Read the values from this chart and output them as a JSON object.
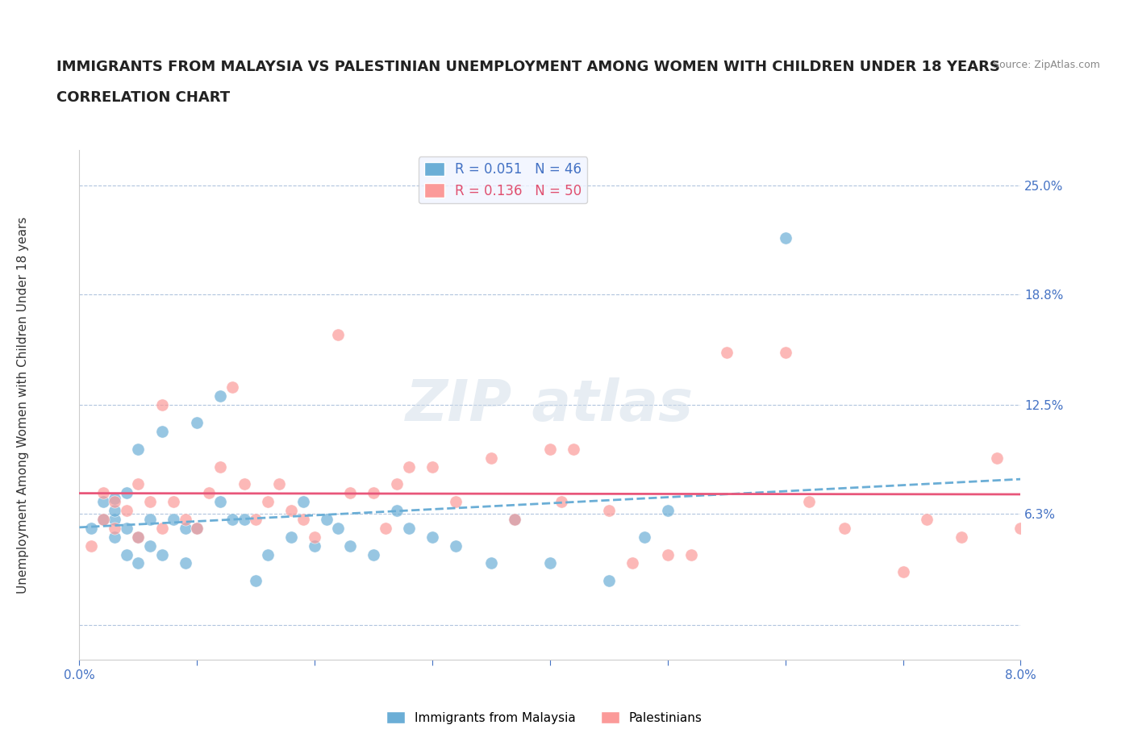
{
  "title_line1": "IMMIGRANTS FROM MALAYSIA VS PALESTINIAN UNEMPLOYMENT AMONG WOMEN WITH CHILDREN UNDER 18 YEARS",
  "title_line2": "CORRELATION CHART",
  "source_text": "Source: ZipAtlas.com",
  "xlabel": "",
  "ylabel": "Unemployment Among Women with Children Under 18 years",
  "x_min": 0.0,
  "x_max": 0.08,
  "y_min": -0.02,
  "y_max": 0.27,
  "y_ticks": [
    0.0,
    0.063,
    0.125,
    0.188,
    0.25
  ],
  "y_tick_labels": [
    "",
    "6.3%",
    "12.5%",
    "18.8%",
    "25.0%"
  ],
  "x_ticks": [
    0.0,
    0.01,
    0.02,
    0.03,
    0.04,
    0.05,
    0.06,
    0.07,
    0.08
  ],
  "x_tick_labels": [
    "0.0%",
    "",
    "",
    "",
    "",
    "",
    "",
    "",
    "8.0%"
  ],
  "R_blue": 0.051,
  "N_blue": 46,
  "R_pink": 0.136,
  "N_pink": 50,
  "blue_color": "#6baed6",
  "pink_color": "#fb9a99",
  "blue_line_color": "#6baed6",
  "pink_line_color": "#e8567a",
  "legend_box_color": "#f0f4ff",
  "watermark_text": "ZIPAtlas",
  "title_fontsize": 13,
  "subtitle_fontsize": 13,
  "axis_label_fontsize": 11,
  "tick_fontsize": 11,
  "legend_fontsize": 12,
  "blue_x": [
    0.001,
    0.002,
    0.002,
    0.003,
    0.003,
    0.003,
    0.003,
    0.004,
    0.004,
    0.004,
    0.005,
    0.005,
    0.005,
    0.006,
    0.006,
    0.007,
    0.007,
    0.008,
    0.009,
    0.009,
    0.01,
    0.01,
    0.012,
    0.012,
    0.013,
    0.014,
    0.015,
    0.016,
    0.018,
    0.019,
    0.02,
    0.021,
    0.022,
    0.023,
    0.025,
    0.027,
    0.028,
    0.03,
    0.032,
    0.035,
    0.037,
    0.04,
    0.045,
    0.048,
    0.05,
    0.06
  ],
  "blue_y": [
    0.055,
    0.06,
    0.07,
    0.05,
    0.06,
    0.065,
    0.072,
    0.04,
    0.055,
    0.075,
    0.035,
    0.05,
    0.1,
    0.045,
    0.06,
    0.04,
    0.11,
    0.06,
    0.035,
    0.055,
    0.055,
    0.115,
    0.07,
    0.13,
    0.06,
    0.06,
    0.025,
    0.04,
    0.05,
    0.07,
    0.045,
    0.06,
    0.055,
    0.045,
    0.04,
    0.065,
    0.055,
    0.05,
    0.045,
    0.035,
    0.06,
    0.035,
    0.025,
    0.05,
    0.065,
    0.22
  ],
  "pink_x": [
    0.001,
    0.002,
    0.002,
    0.003,
    0.003,
    0.004,
    0.005,
    0.005,
    0.006,
    0.007,
    0.007,
    0.008,
    0.009,
    0.01,
    0.011,
    0.012,
    0.013,
    0.014,
    0.015,
    0.016,
    0.017,
    0.018,
    0.019,
    0.02,
    0.022,
    0.023,
    0.025,
    0.026,
    0.027,
    0.028,
    0.03,
    0.032,
    0.035,
    0.037,
    0.04,
    0.041,
    0.042,
    0.045,
    0.047,
    0.05,
    0.052,
    0.055,
    0.06,
    0.062,
    0.065,
    0.07,
    0.072,
    0.075,
    0.078,
    0.08
  ],
  "pink_y": [
    0.045,
    0.06,
    0.075,
    0.055,
    0.07,
    0.065,
    0.05,
    0.08,
    0.07,
    0.055,
    0.125,
    0.07,
    0.06,
    0.055,
    0.075,
    0.09,
    0.135,
    0.08,
    0.06,
    0.07,
    0.08,
    0.065,
    0.06,
    0.05,
    0.165,
    0.075,
    0.075,
    0.055,
    0.08,
    0.09,
    0.09,
    0.07,
    0.095,
    0.06,
    0.1,
    0.07,
    0.1,
    0.065,
    0.035,
    0.04,
    0.04,
    0.155,
    0.155,
    0.07,
    0.055,
    0.03,
    0.06,
    0.05,
    0.095,
    0.055
  ]
}
